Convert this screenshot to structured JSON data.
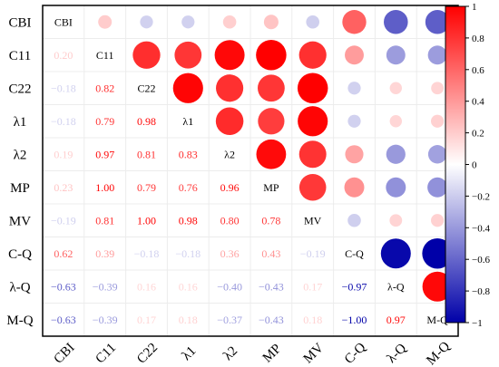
{
  "chart_data": {
    "type": "heatmap",
    "variables": [
      "CBI",
      "C11",
      "C22",
      "λ1",
      "λ2",
      "MP",
      "MV",
      "C-Q",
      "λ-Q",
      "M-Q"
    ],
    "matrix": [
      [
        1.0,
        0.2,
        -0.18,
        -0.18,
        0.19,
        0.23,
        -0.19,
        0.62,
        -0.63,
        -0.63
      ],
      [
        0.2,
        1.0,
        0.82,
        0.79,
        0.97,
        1.0,
        0.81,
        0.39,
        -0.39,
        -0.39
      ],
      [
        -0.18,
        0.82,
        1.0,
        0.98,
        0.81,
        0.79,
        1.0,
        -0.18,
        0.16,
        0.17
      ],
      [
        -0.18,
        0.79,
        0.98,
        1.0,
        0.83,
        0.76,
        0.98,
        -0.18,
        0.16,
        0.18
      ],
      [
        0.19,
        0.97,
        0.81,
        0.83,
        1.0,
        0.96,
        0.8,
        0.36,
        -0.4,
        -0.37
      ],
      [
        0.23,
        1.0,
        0.79,
        0.76,
        0.96,
        1.0,
        0.78,
        0.43,
        -0.43,
        -0.43
      ],
      [
        -0.19,
        0.81,
        1.0,
        0.98,
        0.8,
        0.78,
        1.0,
        -0.19,
        0.17,
        0.18
      ],
      [
        0.62,
        0.39,
        -0.18,
        -0.18,
        0.36,
        0.43,
        -0.19,
        1.0,
        -0.97,
        -1.0
      ],
      [
        -0.63,
        -0.39,
        0.16,
        0.16,
        -0.4,
        -0.43,
        0.17,
        -0.97,
        1.0,
        0.97
      ],
      [
        -0.63,
        -0.39,
        0.17,
        0.18,
        -0.37,
        -0.43,
        0.18,
        -1.0,
        0.97,
        1.0
      ]
    ],
    "lower_triangle": "numbers",
    "upper_triangle": "circles",
    "diagonal": "variable names",
    "value_range": [
      -1,
      1
    ],
    "colorbar_ticks": [
      "1",
      "0.8",
      "0.6",
      "0.4",
      "0.2",
      "0",
      "−0.2",
      "−0.4",
      "−0.6",
      "−0.8",
      "−1"
    ],
    "colors": {
      "negative": "#0000a8",
      "zero": "#ffffff",
      "positive": "#ff0000"
    },
    "grid": true,
    "legend": "right"
  }
}
